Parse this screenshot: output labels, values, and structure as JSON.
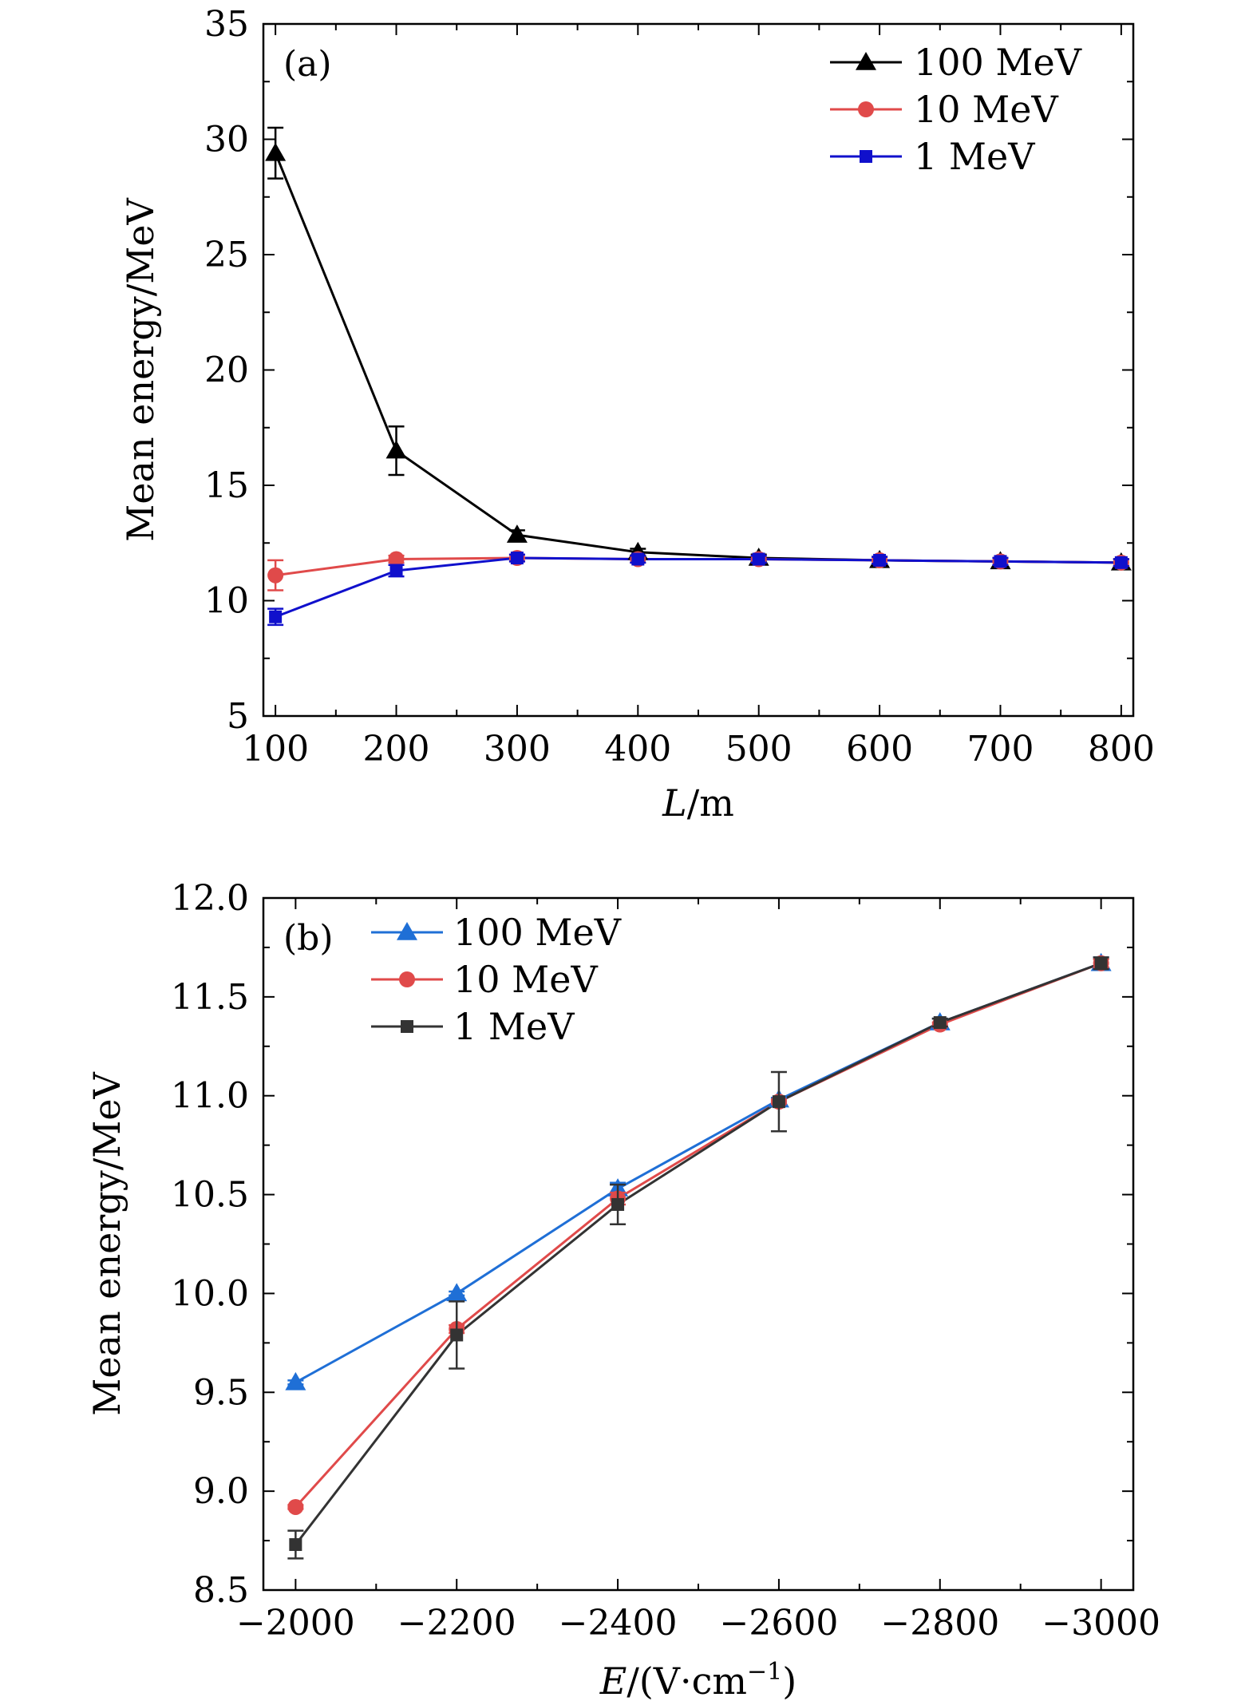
{
  "chart_data": [
    {
      "type": "line",
      "panel": "(a)",
      "xlabel_var": "L",
      "xlabel_unit": "/m",
      "ylabel": "Mean energy/MeV",
      "xlim": [
        90,
        810
      ],
      "ylim": [
        5,
        35
      ],
      "xticks": [
        100,
        200,
        300,
        400,
        500,
        600,
        700,
        800
      ],
      "xtick_labels": [
        "100",
        "200",
        "300",
        "400",
        "500",
        "600",
        "700",
        "800"
      ],
      "yticks": [
        5,
        10,
        15,
        20,
        25,
        30,
        35
      ],
      "ytick_labels": [
        "5",
        "10",
        "15",
        "20",
        "25",
        "30",
        "35"
      ],
      "legend_position": "top-right",
      "x": [
        100,
        200,
        300,
        400,
        500,
        600,
        700,
        800
      ],
      "series": [
        {
          "name": "100 MeV",
          "color": "#000000",
          "marker": "triangle",
          "values": [
            29.4,
            16.5,
            12.85,
            12.1,
            11.85,
            11.75,
            11.7,
            11.65
          ],
          "errors": [
            1.1,
            1.05,
            0.2,
            0.15,
            0.15,
            0.15,
            0.15,
            0.15
          ]
        },
        {
          "name": "10 MeV",
          "color": "#e04a4a",
          "marker": "circle",
          "values": [
            11.1,
            11.8,
            11.85,
            11.8,
            11.8,
            11.75,
            11.7,
            11.65
          ],
          "errors": [
            0.65,
            0.15,
            0.15,
            0.15,
            0.15,
            0.15,
            0.15,
            0.15
          ]
        },
        {
          "name": "1 MeV",
          "color": "#1010cc",
          "marker": "square",
          "values": [
            9.3,
            11.3,
            11.85,
            11.8,
            11.8,
            11.75,
            11.7,
            11.65
          ],
          "errors": [
            0.35,
            0.25,
            0.15,
            0.15,
            0.15,
            0.15,
            0.15,
            0.15
          ]
        }
      ]
    },
    {
      "type": "line",
      "panel": "(b)",
      "xlabel_var": "E",
      "xlabel_unit_pre": "/(V·cm",
      "xlabel_sup": "−1",
      "xlabel_unit_post": ")",
      "ylabel": "Mean energy/MeV",
      "xlim": [
        -1960,
        -3040
      ],
      "ylim": [
        8.5,
        12.0
      ],
      "xticks": [
        -2000,
        -2200,
        -2400,
        -2600,
        -2800,
        -3000
      ],
      "xtick_labels": [
        "−2000",
        "−2200",
        "−2400",
        "−2600",
        "−2800",
        "−3000"
      ],
      "yticks": [
        8.5,
        9.0,
        9.5,
        10.0,
        10.5,
        11.0,
        11.5,
        12.0
      ],
      "ytick_labels": [
        "8.5",
        "9.0",
        "9.5",
        "10.0",
        "10.5",
        "11.0",
        "11.5",
        "12.0"
      ],
      "legend_position": "top-left",
      "x": [
        -2000,
        -2200,
        -2400,
        -2600,
        -2800,
        -3000
      ],
      "series": [
        {
          "name": "100 MeV",
          "color": "#1f6fd6",
          "marker": "triangle",
          "values": [
            9.55,
            10.0,
            10.53,
            10.98,
            11.37,
            11.67
          ],
          "errors": [
            0.01,
            0.01,
            0.03,
            0.01,
            0.02,
            0.03
          ]
        },
        {
          "name": "10 MeV",
          "color": "#e04a4a",
          "marker": "circle",
          "values": [
            8.92,
            9.82,
            10.48,
            10.97,
            11.36,
            11.67
          ],
          "errors": [
            0.01,
            0.02,
            0.03,
            0.01,
            0.01,
            0.02
          ]
        },
        {
          "name": "1 MeV",
          "color": "#333333",
          "marker": "square",
          "values": [
            8.73,
            9.79,
            10.45,
            10.97,
            11.37,
            11.67
          ],
          "errors": [
            0.07,
            0.17,
            0.1,
            0.15,
            0.02,
            0.03
          ]
        }
      ]
    }
  ]
}
